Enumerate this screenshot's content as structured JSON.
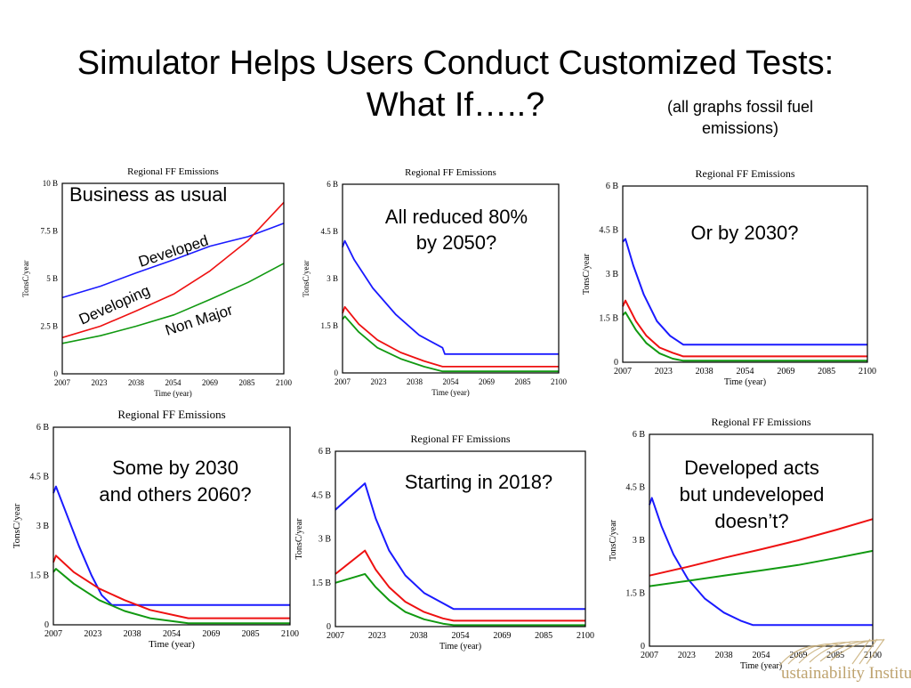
{
  "slide": {
    "title_line1": "Simulator Helps Users Conduct Customized Tests:",
    "title_line2": "What If…..?",
    "note_line1": "(all graphs fossil fuel",
    "note_line2": "emissions)"
  },
  "colors": {
    "developed": "#1a1aff",
    "developing": "#ee1111",
    "non_major": "#119911"
  },
  "logo": {
    "text": "ustainability Institute"
  },
  "chart_data": [
    {
      "type": "line",
      "title": "Regional FF Emissions",
      "xlabel": "Time (year)",
      "ylabel": "TonsC/year",
      "xlim": [
        2007,
        2100
      ],
      "ylim": [
        0,
        10000000000
      ],
      "xticks": [
        "2007",
        "2023",
        "2038",
        "2054",
        "2069",
        "2085",
        "2100"
      ],
      "yticks": [
        "0",
        "2.5 B",
        "5 B",
        "7.5 B",
        "10 B"
      ],
      "annotations": [
        {
          "text": "Business as usual"
        },
        {
          "text": "Developed"
        },
        {
          "text": "Developing"
        },
        {
          "text": "Non Major"
        }
      ],
      "series": [
        {
          "color": "#1a1aff",
          "points": [
            [
              2007,
              4.0
            ],
            [
              2023,
              4.6
            ],
            [
              2038,
              5.3
            ],
            [
              2054,
              6.0
            ],
            [
              2069,
              6.7
            ],
            [
              2085,
              7.2
            ],
            [
              2100,
              7.9
            ]
          ]
        },
        {
          "color": "#ee1111",
          "points": [
            [
              2007,
              1.9
            ],
            [
              2023,
              2.5
            ],
            [
              2038,
              3.3
            ],
            [
              2054,
              4.2
            ],
            [
              2069,
              5.4
            ],
            [
              2085,
              7.0
            ],
            [
              2100,
              9.0
            ]
          ]
        },
        {
          "color": "#119911",
          "points": [
            [
              2007,
              1.6
            ],
            [
              2023,
              2.0
            ],
            [
              2038,
              2.5
            ],
            [
              2054,
              3.1
            ],
            [
              2069,
              3.9
            ],
            [
              2085,
              4.8
            ],
            [
              2100,
              5.8
            ]
          ]
        }
      ]
    },
    {
      "type": "line",
      "title": "Regional FF Emissions",
      "xlabel": "Time (year)",
      "ylabel": "TonsC/year",
      "xlim": [
        2007,
        2100
      ],
      "ylim": [
        0,
        6000000000
      ],
      "xticks": [
        "2007",
        "2023",
        "2038",
        "2054",
        "2069",
        "2085",
        "2100"
      ],
      "yticks": [
        "0",
        "1.5 B",
        "3 B",
        "4.5 B",
        "6 B"
      ],
      "annotations": [
        {
          "text": "All reduced 80%"
        },
        {
          "text": "by 2050?"
        }
      ],
      "series": [
        {
          "color": "#1a1aff",
          "points": [
            [
              2007,
              4.0
            ],
            [
              2008,
              4.2
            ],
            [
              2012,
              3.6
            ],
            [
              2020,
              2.7
            ],
            [
              2030,
              1.85
            ],
            [
              2040,
              1.2
            ],
            [
              2050,
              0.8
            ],
            [
              2051,
              0.6
            ],
            [
              2100,
              0.6
            ]
          ]
        },
        {
          "color": "#ee1111",
          "points": [
            [
              2007,
              1.9
            ],
            [
              2008,
              2.1
            ],
            [
              2014,
              1.55
            ],
            [
              2022,
              1.05
            ],
            [
              2032,
              0.65
            ],
            [
              2042,
              0.38
            ],
            [
              2050,
              0.2
            ],
            [
              2100,
              0.2
            ]
          ]
        },
        {
          "color": "#119911",
          "points": [
            [
              2007,
              1.7
            ],
            [
              2008,
              1.8
            ],
            [
              2014,
              1.3
            ],
            [
              2022,
              0.8
            ],
            [
              2032,
              0.45
            ],
            [
              2042,
              0.2
            ],
            [
              2050,
              0.05
            ],
            [
              2100,
              0.05
            ]
          ]
        }
      ]
    },
    {
      "type": "line",
      "title": "Regional FF Emissions",
      "xlabel": "Time (year)",
      "ylabel": "TonsC/year",
      "xlim": [
        2007,
        2100
      ],
      "ylim": [
        0,
        6000000000
      ],
      "xticks": [
        "2007",
        "2023",
        "2038",
        "2054",
        "2069",
        "2085",
        "2100"
      ],
      "yticks": [
        "0",
        "1.5 B",
        "3 B",
        "4.5 B",
        "6 B"
      ],
      "annotations": [
        {
          "text": "Or by 2030?"
        }
      ],
      "series": [
        {
          "color": "#1a1aff",
          "points": [
            [
              2007,
              4.1
            ],
            [
              2008,
              4.2
            ],
            [
              2011,
              3.3
            ],
            [
              2015,
              2.3
            ],
            [
              2020,
              1.4
            ],
            [
              2025,
              0.9
            ],
            [
              2030,
              0.6
            ],
            [
              2100,
              0.6
            ]
          ]
        },
        {
          "color": "#ee1111",
          "points": [
            [
              2007,
              1.9
            ],
            [
              2008,
              2.1
            ],
            [
              2012,
              1.4
            ],
            [
              2016,
              0.9
            ],
            [
              2021,
              0.5
            ],
            [
              2026,
              0.32
            ],
            [
              2030,
              0.2
            ],
            [
              2100,
              0.2
            ]
          ]
        },
        {
          "color": "#119911",
          "points": [
            [
              2007,
              1.6
            ],
            [
              2008,
              1.7
            ],
            [
              2012,
              1.1
            ],
            [
              2016,
              0.65
            ],
            [
              2021,
              0.3
            ],
            [
              2026,
              0.12
            ],
            [
              2030,
              0.05
            ],
            [
              2100,
              0.05
            ]
          ]
        }
      ]
    },
    {
      "type": "line",
      "title": "Regional FF Emissions",
      "xlabel": "Time (year)",
      "ylabel": "TonsC/year",
      "xlim": [
        2007,
        2100
      ],
      "ylim": [
        0,
        6000000000
      ],
      "xticks": [
        "2007",
        "2023",
        "2038",
        "2054",
        "2069",
        "2085",
        "2100"
      ],
      "yticks": [
        "0",
        "1.5 B",
        "3 B",
        "4.5 B",
        "6 B"
      ],
      "annotations": [
        {
          "text": "Some by 2030"
        },
        {
          "text": "and others 2060?"
        }
      ],
      "series": [
        {
          "color": "#1a1aff",
          "points": [
            [
              2007,
              4.0
            ],
            [
              2008,
              4.2
            ],
            [
              2012,
              3.4
            ],
            [
              2017,
              2.4
            ],
            [
              2022,
              1.5
            ],
            [
              2026,
              0.9
            ],
            [
              2030,
              0.6
            ],
            [
              2100,
              0.6
            ]
          ]
        },
        {
          "color": "#ee1111",
          "points": [
            [
              2007,
              1.9
            ],
            [
              2008,
              2.1
            ],
            [
              2015,
              1.6
            ],
            [
              2025,
              1.1
            ],
            [
              2035,
              0.75
            ],
            [
              2045,
              0.45
            ],
            [
              2060,
              0.2
            ],
            [
              2100,
              0.2
            ]
          ]
        },
        {
          "color": "#119911",
          "points": [
            [
              2007,
              1.6
            ],
            [
              2008,
              1.7
            ],
            [
              2015,
              1.25
            ],
            [
              2025,
              0.75
            ],
            [
              2035,
              0.42
            ],
            [
              2045,
              0.2
            ],
            [
              2060,
              0.05
            ],
            [
              2100,
              0.05
            ]
          ]
        }
      ]
    },
    {
      "type": "line",
      "title": "Regional FF Emissions",
      "xlabel": "Time (year)",
      "ylabel": "TonsC/year",
      "xlim": [
        2007,
        2100
      ],
      "ylim": [
        0,
        6000000000
      ],
      "xticks": [
        "2007",
        "2023",
        "2038",
        "2054",
        "2069",
        "2085",
        "2100"
      ],
      "yticks": [
        "0",
        "1.5 B",
        "3 B",
        "4.5 B",
        "6 B"
      ],
      "annotations": [
        {
          "text": "Starting in 2018?"
        }
      ],
      "series": [
        {
          "color": "#1a1aff",
          "points": [
            [
              2007,
              4.0
            ],
            [
              2018,
              4.9
            ],
            [
              2022,
              3.7
            ],
            [
              2027,
              2.6
            ],
            [
              2033,
              1.75
            ],
            [
              2040,
              1.15
            ],
            [
              2047,
              0.8
            ],
            [
              2051,
              0.6
            ],
            [
              2100,
              0.6
            ]
          ]
        },
        {
          "color": "#ee1111",
          "points": [
            [
              2007,
              1.8
            ],
            [
              2018,
              2.6
            ],
            [
              2022,
              1.95
            ],
            [
              2027,
              1.35
            ],
            [
              2033,
              0.85
            ],
            [
              2040,
              0.5
            ],
            [
              2047,
              0.28
            ],
            [
              2051,
              0.2
            ],
            [
              2100,
              0.2
            ]
          ]
        },
        {
          "color": "#119911",
          "points": [
            [
              2007,
              1.5
            ],
            [
              2018,
              1.8
            ],
            [
              2022,
              1.35
            ],
            [
              2027,
              0.9
            ],
            [
              2033,
              0.5
            ],
            [
              2040,
              0.25
            ],
            [
              2047,
              0.1
            ],
            [
              2051,
              0.05
            ],
            [
              2100,
              0.05
            ]
          ]
        }
      ]
    },
    {
      "type": "line",
      "title": "Regional FF Emissions",
      "xlabel": "Time (year)",
      "ylabel": "TonsC/year",
      "xlim": [
        2007,
        2100
      ],
      "ylim": [
        0,
        6000000000
      ],
      "xticks": [
        "2007",
        "2023",
        "2038",
        "2054",
        "2069",
        "2085",
        "2100"
      ],
      "yticks": [
        "0",
        "1.5 B",
        "3 B",
        "4.5 B",
        "6 B"
      ],
      "annotations": [
        {
          "text": "Developed acts"
        },
        {
          "text": "but undeveloped"
        },
        {
          "text": "doesn’t?"
        }
      ],
      "series": [
        {
          "color": "#1a1aff",
          "points": [
            [
              2007,
              4.0
            ],
            [
              2008,
              4.2
            ],
            [
              2012,
              3.4
            ],
            [
              2017,
              2.6
            ],
            [
              2023,
              1.9
            ],
            [
              2030,
              1.35
            ],
            [
              2038,
              0.95
            ],
            [
              2045,
              0.72
            ],
            [
              2050,
              0.6
            ],
            [
              2100,
              0.6
            ]
          ]
        },
        {
          "color": "#ee1111",
          "points": [
            [
              2007,
              2.0
            ],
            [
              2023,
              2.25
            ],
            [
              2038,
              2.5
            ],
            [
              2054,
              2.75
            ],
            [
              2069,
              3.0
            ],
            [
              2085,
              3.3
            ],
            [
              2100,
              3.6
            ]
          ]
        },
        {
          "color": "#119911",
          "points": [
            [
              2007,
              1.7
            ],
            [
              2023,
              1.85
            ],
            [
              2038,
              2.0
            ],
            [
              2054,
              2.15
            ],
            [
              2069,
              2.3
            ],
            [
              2085,
              2.5
            ],
            [
              2100,
              2.7
            ]
          ]
        }
      ]
    }
  ]
}
